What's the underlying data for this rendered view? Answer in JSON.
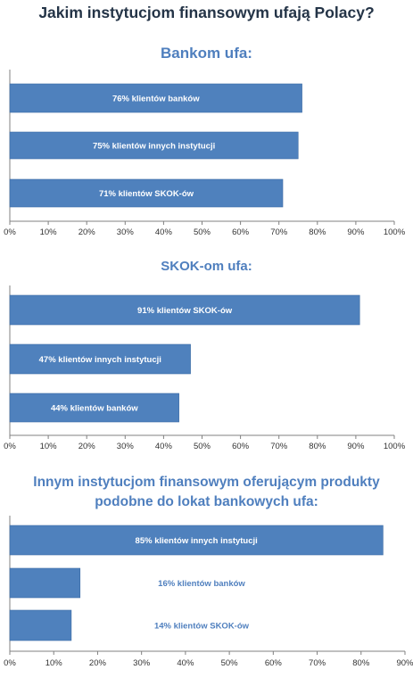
{
  "title": "Jakim instytucjom finansowym ufają Polacy?",
  "colors": {
    "bar": "#4f81bd",
    "title": "#243447",
    "section_title": "#4f7fbe",
    "label_inside": "#ffffff",
    "label_outside": "#4f7fbe"
  },
  "chart_data": [
    {
      "type": "bar",
      "orientation": "horizontal",
      "title": "Bankom ufa:",
      "categories": [
        "76% klientów banków",
        "75% klientów innych instytucji",
        "71% klientów SKOK-ów"
      ],
      "values": [
        76,
        75,
        71
      ],
      "xlim": [
        0,
        100
      ],
      "xticks": [
        "0%",
        "10%",
        "20%",
        "30%",
        "40%",
        "50%",
        "60%",
        "70%",
        "80%",
        "90%",
        "100%"
      ],
      "grid": false
    },
    {
      "type": "bar",
      "orientation": "horizontal",
      "title": "SKOK-om ufa:",
      "categories": [
        "91% klientów SKOK-ów",
        "47% klientów innych instytucji",
        "44% klientów banków"
      ],
      "values": [
        91,
        47,
        44
      ],
      "xlim": [
        0,
        100
      ],
      "xticks": [
        "0%",
        "10%",
        "20%",
        "30%",
        "40%",
        "50%",
        "60%",
        "70%",
        "80%",
        "90%",
        "100%"
      ],
      "grid": false
    },
    {
      "type": "bar",
      "orientation": "horizontal",
      "title_lines": [
        "Innym instytucjom  finansowym  oferującym produkty",
        "podobne do lokat bankowych ufa:"
      ],
      "categories": [
        "85% klientów innych instytucji",
        "16% klientów banków",
        "14% klientów SKOK-ów"
      ],
      "values": [
        85,
        16,
        14
      ],
      "xlim": [
        0,
        90
      ],
      "xticks": [
        "0%",
        "10%",
        "20%",
        "30%",
        "40%",
        "50%",
        "60%",
        "70%",
        "80%",
        "90%"
      ],
      "grid": false
    }
  ]
}
